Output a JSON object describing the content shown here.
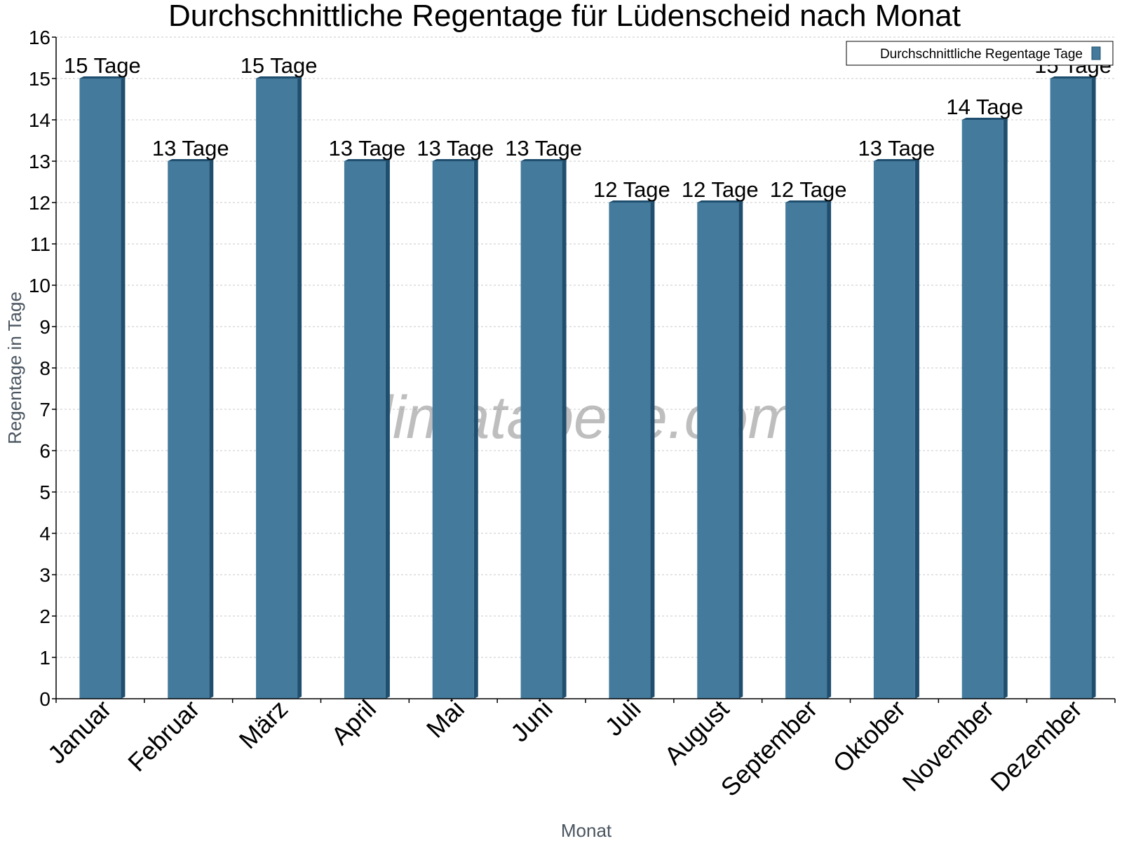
{
  "chart_data": {
    "type": "bar",
    "title": "Durchschnittliche Regentage für Lüdenscheid nach Monat",
    "xlabel": "Monat",
    "ylabel": "Regentage in Tage",
    "categories": [
      "Januar",
      "Februar",
      "März",
      "April",
      "Mai",
      "Juni",
      "Juli",
      "August",
      "September",
      "Oktober",
      "November",
      "Dezember"
    ],
    "series": [
      {
        "name": "Durchschnittliche Regentage Tage",
        "values": [
          15,
          13,
          15,
          13,
          13,
          13,
          12,
          12,
          12,
          13,
          14,
          15
        ],
        "value_labels": [
          "15 Tage",
          "13 Tage",
          "15 Tage",
          "13 Tage",
          "13 Tage",
          "13 Tage",
          "12 Tage",
          "12 Tage",
          "12 Tage",
          "13 Tage",
          "14 Tage",
          "15 Tage"
        ]
      }
    ],
    "ylim": [
      0,
      16
    ],
    "yticks": [
      "0",
      "1",
      "2",
      "3",
      "4",
      "5",
      "6",
      "7",
      "8",
      "9",
      "10",
      "11",
      "12",
      "13",
      "14",
      "15",
      "16"
    ],
    "grid": true,
    "legend_position": "top-right",
    "watermark": "klimatabelle.com",
    "colors": {
      "bar": "#447a9c",
      "bar_side": "#1f4e6e",
      "bar_top": "#1f4e6e",
      "grid": "#c8c8c8",
      "axis_title": "#4a5560"
    }
  }
}
